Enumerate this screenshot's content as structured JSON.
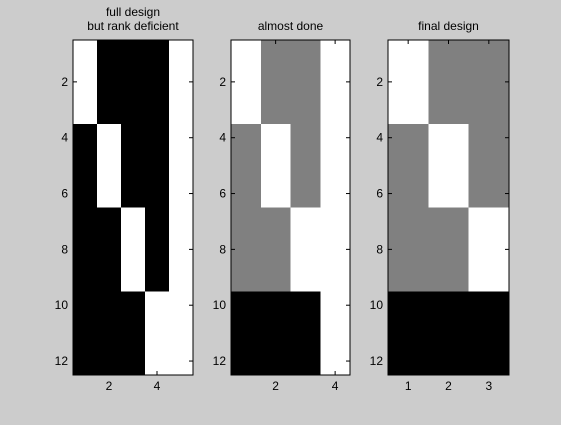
{
  "figure": {
    "background": "#cccccc"
  },
  "chart_data": [
    {
      "type": "heatmap",
      "title_lines": [
        "full design",
        "but rank deficient"
      ],
      "xlabel": "",
      "ylabel": "",
      "x_ticks": [
        2,
        4
      ],
      "y_ticks": [
        2,
        4,
        6,
        8,
        10,
        12
      ],
      "xlim": [
        0.5,
        5.5
      ],
      "ylim": [
        0.5,
        12.5
      ],
      "color_levels": {
        "0": "#000000",
        "0.5": "#808080",
        "1": "#ffffff"
      },
      "values": [
        [
          1,
          0,
          0,
          0,
          1
        ],
        [
          1,
          0,
          0,
          0,
          1
        ],
        [
          1,
          0,
          0,
          0,
          1
        ],
        [
          0,
          1,
          0,
          0,
          1
        ],
        [
          0,
          1,
          0,
          0,
          1
        ],
        [
          0,
          1,
          0,
          0,
          1
        ],
        [
          0,
          0,
          1,
          0,
          1
        ],
        [
          0,
          0,
          1,
          0,
          1
        ],
        [
          0,
          0,
          1,
          0,
          1
        ],
        [
          0,
          0,
          0,
          1,
          1
        ],
        [
          0,
          0,
          0,
          1,
          1
        ],
        [
          0,
          0,
          0,
          1,
          1
        ]
      ]
    },
    {
      "type": "heatmap",
      "title_lines": [
        "almost done"
      ],
      "xlabel": "",
      "ylabel": "",
      "x_ticks": [
        2,
        4
      ],
      "y_ticks": [
        2,
        4,
        6,
        8,
        10,
        12
      ],
      "xlim": [
        0.5,
        4.5
      ],
      "ylim": [
        0.5,
        12.5
      ],
      "color_levels": {
        "0": "#000000",
        "0.5": "#808080",
        "1": "#ffffff"
      },
      "values": [
        [
          1,
          0.5,
          0.5,
          1
        ],
        [
          1,
          0.5,
          0.5,
          1
        ],
        [
          1,
          0.5,
          0.5,
          1
        ],
        [
          0.5,
          1,
          0.5,
          1
        ],
        [
          0.5,
          1,
          0.5,
          1
        ],
        [
          0.5,
          1,
          0.5,
          1
        ],
        [
          0.5,
          0.5,
          1,
          1
        ],
        [
          0.5,
          0.5,
          1,
          1
        ],
        [
          0.5,
          0.5,
          1,
          1
        ],
        [
          0,
          0,
          0,
          1
        ],
        [
          0,
          0,
          0,
          1
        ],
        [
          0,
          0,
          0,
          1
        ]
      ]
    },
    {
      "type": "heatmap",
      "title_lines": [
        "final design"
      ],
      "xlabel": "",
      "ylabel": "",
      "x_ticks": [
        1,
        2,
        3
      ],
      "y_ticks": [
        2,
        4,
        6,
        8,
        10,
        12
      ],
      "xlim": [
        0.5,
        3.5
      ],
      "ylim": [
        0.5,
        12.5
      ],
      "color_levels": {
        "0": "#000000",
        "0.5": "#808080",
        "1": "#ffffff"
      },
      "values": [
        [
          1,
          0.5,
          0.5
        ],
        [
          1,
          0.5,
          0.5
        ],
        [
          1,
          0.5,
          0.5
        ],
        [
          0.5,
          1,
          0.5
        ],
        [
          0.5,
          1,
          0.5
        ],
        [
          0.5,
          1,
          0.5
        ],
        [
          0.5,
          0.5,
          1
        ],
        [
          0.5,
          0.5,
          1
        ],
        [
          0.5,
          0.5,
          1
        ],
        [
          0,
          0,
          0
        ],
        [
          0,
          0,
          0
        ],
        [
          0,
          0,
          0
        ]
      ]
    }
  ]
}
